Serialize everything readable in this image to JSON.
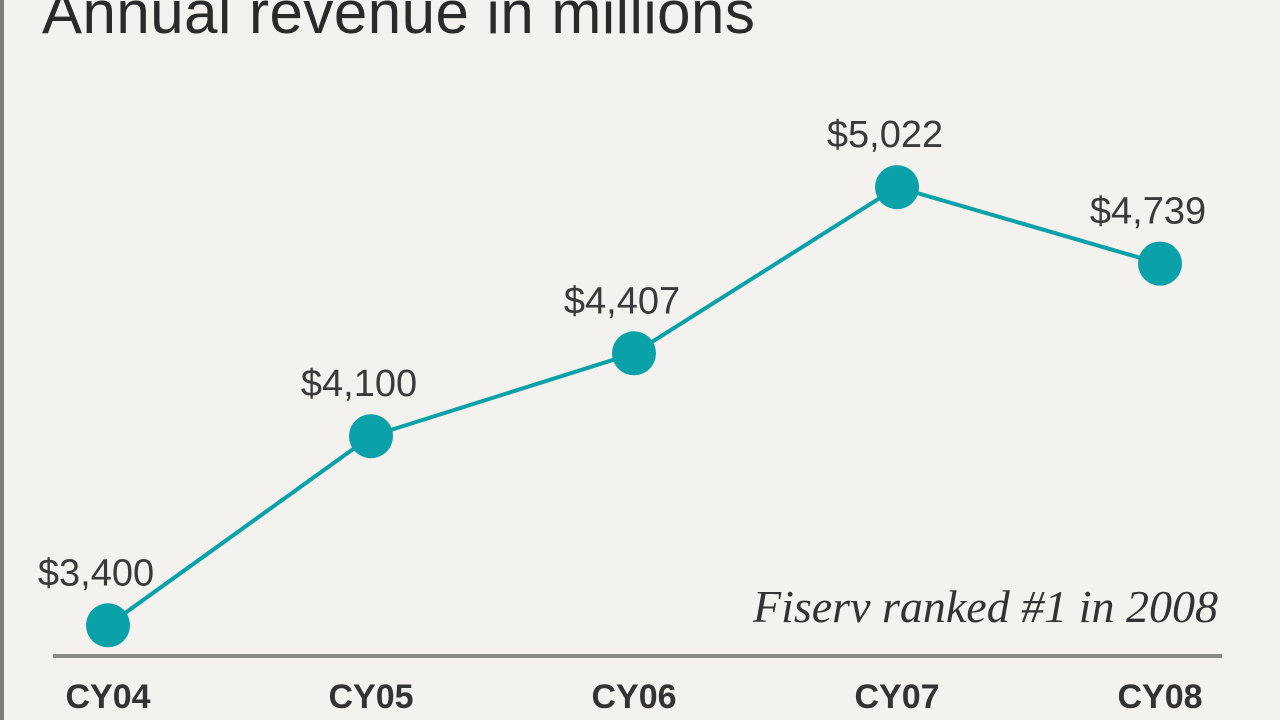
{
  "chart_data": {
    "type": "line",
    "title": "Annual revenue in millions",
    "annotation": "Fiserv ranked #1 in 2008",
    "categories": [
      "CY04",
      "CY05",
      "CY06",
      "CY07",
      "CY08"
    ],
    "values": [
      3400,
      4100,
      4407,
      5022,
      4739
    ],
    "data_labels": [
      "$3,400",
      "$4,100",
      "$4,407",
      "$5,022",
      "$4,739"
    ],
    "xlabel": "",
    "ylabel": "",
    "ylim": [
      3290,
      5715
    ],
    "grid": false,
    "legend": "none",
    "colors": {
      "line": "#0aa1a9",
      "background": "#f3f2ee",
      "axis": "#8a8a86"
    }
  }
}
